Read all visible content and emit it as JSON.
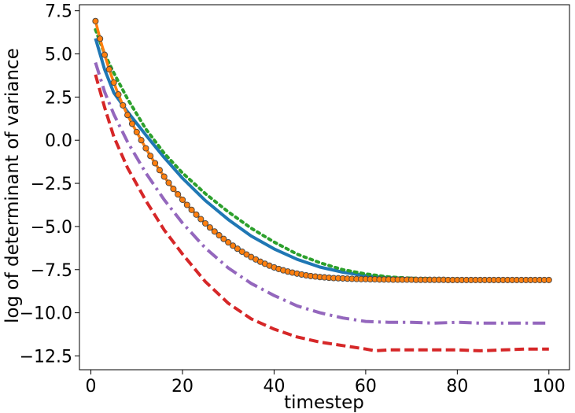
{
  "chart_data": {
    "type": "line",
    "title": "",
    "xlabel": "timestep",
    "ylabel": "log of determinant of variance",
    "xlim": [
      -2.5,
      104.5
    ],
    "ylim": [
      -13.3,
      7.85
    ],
    "xticks": [
      0,
      20,
      40,
      60,
      80,
      100
    ],
    "xtick_labels": [
      "0",
      "20",
      "40",
      "60",
      "80",
      "100"
    ],
    "yticks": [
      7.5,
      5.0,
      2.5,
      0.0,
      -2.5,
      -5.0,
      -7.5,
      -10.0,
      -12.5
    ],
    "ytick_labels": [
      "7.5",
      "5.0",
      "2.5",
      "0.0",
      "−2.5",
      "−5.0",
      "−7.5",
      "−10.0",
      "−12.5"
    ],
    "grid": false,
    "legend": "none",
    "series": [
      {
        "style": "solid",
        "color": "#1f77b4",
        "x": [
          1,
          3,
          5,
          8,
          12,
          16,
          20,
          25,
          30,
          35,
          40,
          45,
          50,
          55,
          60,
          65,
          70,
          80,
          90,
          100
        ],
        "y": [
          5.9,
          4.1,
          2.75,
          1.65,
          0.3,
          -1.0,
          -2.2,
          -3.5,
          -4.6,
          -5.55,
          -6.3,
          -6.9,
          -7.35,
          -7.65,
          -7.85,
          -7.97,
          -8.03,
          -8.08,
          -8.1,
          -8.1
        ]
      },
      {
        "style": "dotted",
        "color": "#2ca02c",
        "x": [
          1,
          3,
          5,
          8,
          12,
          16,
          20,
          25,
          30,
          35,
          40,
          45,
          50,
          55,
          60,
          65,
          70,
          80,
          90,
          100
        ],
        "y": [
          6.4,
          5.0,
          3.9,
          2.4,
          0.65,
          -0.75,
          -1.9,
          -3.1,
          -4.15,
          -5.1,
          -5.9,
          -6.6,
          -7.1,
          -7.5,
          -7.75,
          -7.92,
          -8.0,
          -8.05,
          -8.08,
          -8.1
        ]
      },
      {
        "style": "dashdot",
        "color": "#9467bd",
        "x": [
          1,
          3,
          5,
          8,
          12,
          16,
          20,
          25,
          30,
          35,
          40,
          45,
          50,
          55,
          60,
          65,
          70,
          75,
          80,
          85,
          90,
          95,
          100
        ],
        "y": [
          4.5,
          2.8,
          1.5,
          -0.1,
          -1.9,
          -3.45,
          -4.8,
          -6.25,
          -7.4,
          -8.3,
          -9.0,
          -9.6,
          -10.0,
          -10.3,
          -10.5,
          -10.55,
          -10.55,
          -10.6,
          -10.55,
          -10.6,
          -10.6,
          -10.6,
          -10.6
        ]
      },
      {
        "style": "dashed",
        "color": "#d62728",
        "x": [
          1,
          3,
          5,
          8,
          12,
          16,
          20,
          25,
          30,
          35,
          40,
          45,
          50,
          55,
          60,
          62,
          65,
          70,
          75,
          80,
          85,
          90,
          95,
          100
        ],
        "y": [
          3.8,
          1.9,
          0.2,
          -1.6,
          -3.5,
          -5.2,
          -6.6,
          -8.2,
          -9.45,
          -10.35,
          -10.95,
          -11.4,
          -11.7,
          -11.9,
          -12.1,
          -12.2,
          -12.15,
          -12.15,
          -12.15,
          -12.15,
          -12.2,
          -12.15,
          -12.1,
          -12.1
        ]
      },
      {
        "style": "solid-markers",
        "color": "#ff7f0e",
        "marker_fill": "#ff7f0e",
        "marker_edge": "#444444",
        "x": [
          1,
          2,
          3,
          4,
          5,
          6,
          7,
          8,
          9,
          10,
          11,
          12,
          13,
          14,
          15,
          16,
          17,
          18,
          19,
          20,
          21,
          22,
          23,
          24,
          25,
          26,
          27,
          28,
          29,
          30,
          31,
          32,
          33,
          34,
          35,
          36,
          37,
          38,
          39,
          40,
          41,
          42,
          43,
          44,
          45,
          46,
          47,
          48,
          49,
          50,
          51,
          52,
          53,
          54,
          55,
          56,
          57,
          58,
          59,
          60,
          61,
          62,
          63,
          64,
          65,
          66,
          67,
          68,
          69,
          70,
          71,
          72,
          73,
          74,
          75,
          76,
          77,
          78,
          79,
          80,
          81,
          82,
          83,
          84,
          85,
          86,
          87,
          88,
          89,
          90,
          91,
          92,
          93,
          94,
          95,
          96,
          97,
          98,
          99,
          100
        ],
        "y": [
          6.9,
          5.88,
          4.95,
          4.11,
          3.34,
          2.65,
          2.02,
          1.46,
          0.95,
          0.47,
          0.0,
          -0.47,
          -0.91,
          -1.33,
          -1.73,
          -2.11,
          -2.47,
          -2.82,
          -3.14,
          -3.45,
          -3.75,
          -4.04,
          -4.31,
          -4.57,
          -4.82,
          -5.06,
          -5.29,
          -5.51,
          -5.72,
          -5.92,
          -6.11,
          -6.29,
          -6.46,
          -6.62,
          -6.77,
          -6.91,
          -7.04,
          -7.16,
          -7.27,
          -7.37,
          -7.46,
          -7.54,
          -7.61,
          -7.67,
          -7.73,
          -7.78,
          -7.83,
          -7.87,
          -7.9,
          -7.93,
          -7.95,
          -7.97,
          -7.99,
          -8.0,
          -8.01,
          -8.02,
          -8.03,
          -8.04,
          -8.05,
          -8.05,
          -8.06,
          -8.06,
          -8.07,
          -8.07,
          -8.07,
          -8.08,
          -8.08,
          -8.08,
          -8.08,
          -8.08,
          -8.09,
          -8.09,
          -8.09,
          -8.09,
          -8.09,
          -8.09,
          -8.09,
          -8.1,
          -8.1,
          -8.1,
          -8.1,
          -8.1,
          -8.1,
          -8.1,
          -8.1,
          -8.1,
          -8.1,
          -8.1,
          -8.1,
          -8.1,
          -8.1,
          -8.1,
          -8.1,
          -8.1,
          -8.1,
          -8.1,
          -8.1,
          -8.1,
          -8.1,
          -8.1
        ]
      }
    ]
  }
}
